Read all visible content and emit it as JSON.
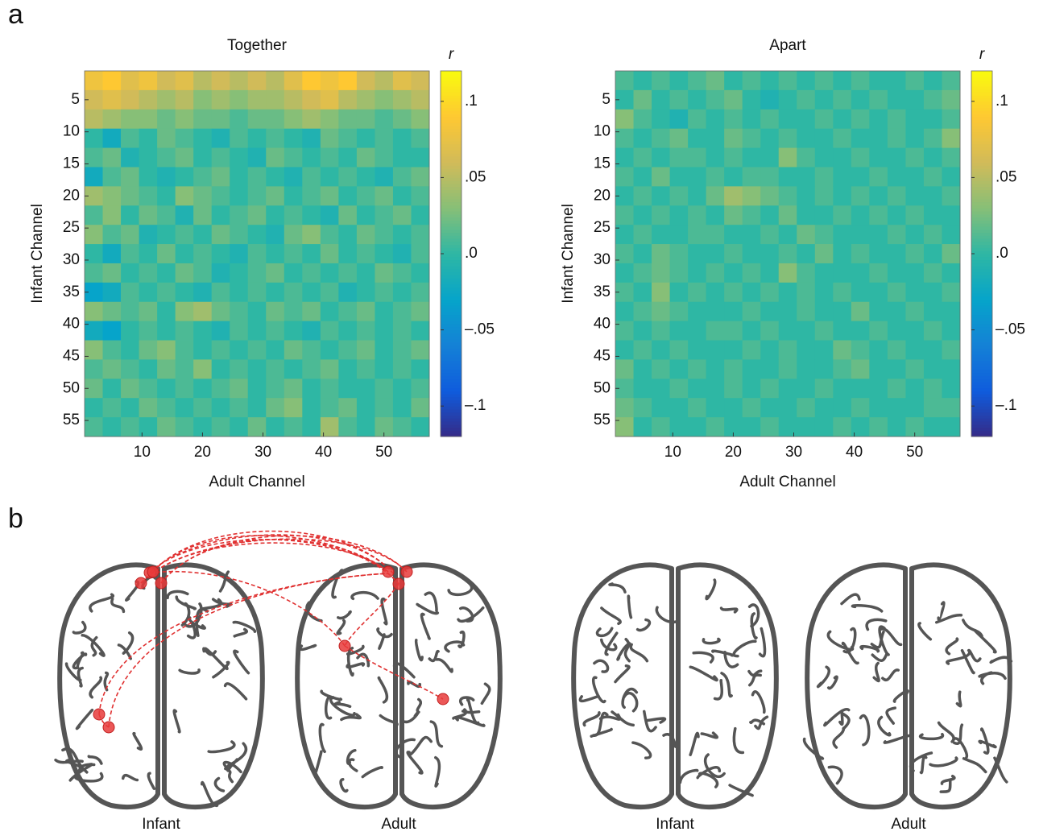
{
  "panel_labels": [
    "a",
    "b"
  ],
  "chart_data": [
    {
      "type": "heatmap",
      "title": "Together",
      "xlabel": "Adult Channel",
      "ylabel": "Infant Channel",
      "colorbar_label": "r",
      "colormap": "parula",
      "xlim": [
        0.5,
        57.5
      ],
      "ylim": [
        0.5,
        57.5
      ],
      "y_reversed": true,
      "xticks": [
        10,
        20,
        30,
        40,
        50
      ],
      "yticks": [
        5,
        10,
        15,
        20,
        25,
        30,
        35,
        40,
        45,
        50,
        55
      ],
      "clim": [
        -0.12,
        0.12
      ],
      "cticks": [
        {
          "value": 0.1,
          "label": ".1"
        },
        {
          "value": 0.05,
          "label": ".05"
        },
        {
          "value": 0,
          "label": ".0"
        },
        {
          "value": -0.05,
          "label": "–.05"
        },
        {
          "value": -0.1,
          "label": "–.1"
        }
      ],
      "xbins": [
        0.5,
        3.5,
        6.5,
        9.5,
        12.5,
        15.5,
        18.5,
        21.5,
        24.5,
        27.5,
        30.5,
        33.5,
        36.5,
        39.5,
        42.5,
        45.5,
        48.5,
        51.5,
        54.5,
        57.5
      ],
      "ybins": [
        0.5,
        3.5,
        6.5,
        9.5,
        12.5,
        15.5,
        18.5,
        21.5,
        24.5,
        27.5,
        30.5,
        33.5,
        36.5,
        39.5,
        42.5,
        45.5,
        48.5,
        51.5,
        54.5,
        57.5
      ],
      "z": [
        [
          0.08,
          0.09,
          0.07,
          0.08,
          0.06,
          0.07,
          0.05,
          0.06,
          0.05,
          0.06,
          0.05,
          0.07,
          0.09,
          0.08,
          0.09,
          0.06,
          0.05,
          0.07,
          0.06
        ],
        [
          0.06,
          0.07,
          0.06,
          0.05,
          0.04,
          0.05,
          0.03,
          0.04,
          0.03,
          0.04,
          0.04,
          0.05,
          0.06,
          0.07,
          0.05,
          0.04,
          0.03,
          0.04,
          0.05
        ],
        [
          0.05,
          0.04,
          0.03,
          0.03,
          0.02,
          0.03,
          0.02,
          0.02,
          0.01,
          0.02,
          0.02,
          0.03,
          0.04,
          0.03,
          0.02,
          0.02,
          0.01,
          0.02,
          0.03
        ],
        [
          0.0,
          -0.02,
          0.01,
          0.0,
          0.02,
          0.01,
          0.0,
          -0.01,
          0.01,
          0.0,
          0.01,
          0.0,
          -0.01,
          0.02,
          0.01,
          0.0,
          0.01,
          0.0,
          0.01
        ],
        [
          0.01,
          0.02,
          -0.01,
          0.0,
          0.01,
          0.02,
          0.0,
          0.01,
          0.0,
          -0.01,
          0.02,
          0.01,
          0.0,
          0.01,
          0.0,
          0.02,
          0.01,
          0.0,
          0.0
        ],
        [
          -0.02,
          0.01,
          0.02,
          0.0,
          -0.01,
          0.0,
          0.01,
          0.02,
          0.0,
          0.01,
          0.0,
          -0.01,
          0.01,
          0.0,
          0.01,
          0.0,
          -0.01,
          0.01,
          0.02
        ],
        [
          0.04,
          0.03,
          0.02,
          0.01,
          0.0,
          0.03,
          0.02,
          0.01,
          0.0,
          0.01,
          0.02,
          0.0,
          0.01,
          0.02,
          0.0,
          0.01,
          0.02,
          0.0,
          0.01
        ],
        [
          0.01,
          0.03,
          0.0,
          0.02,
          0.01,
          -0.01,
          0.02,
          0.0,
          0.01,
          0.02,
          0.0,
          0.01,
          0.0,
          -0.01,
          0.02,
          0.0,
          0.01,
          0.02,
          0.0
        ],
        [
          0.03,
          0.01,
          0.02,
          -0.01,
          0.0,
          0.01,
          0.0,
          0.02,
          0.01,
          0.0,
          -0.01,
          0.02,
          0.03,
          0.01,
          0.0,
          0.02,
          0.01,
          0.0,
          0.01
        ],
        [
          0.0,
          -0.02,
          0.01,
          0.0,
          0.02,
          0.0,
          0.01,
          0.0,
          -0.01,
          0.01,
          0.0,
          0.01,
          0.0,
          0.02,
          0.0,
          0.01,
          0.0,
          -0.01,
          0.01
        ],
        [
          0.01,
          0.02,
          0.0,
          0.01,
          0.0,
          0.02,
          0.01,
          -0.01,
          0.0,
          0.01,
          0.02,
          0.0,
          0.01,
          0.0,
          0.01,
          0.0,
          0.02,
          0.01,
          0.0
        ],
        [
          -0.03,
          -0.02,
          0.01,
          0.0,
          0.01,
          0.0,
          -0.01,
          0.01,
          0.0,
          0.01,
          0.0,
          0.01,
          0.0,
          0.01,
          -0.01,
          0.0,
          0.01,
          0.0,
          0.01
        ],
        [
          0.03,
          0.02,
          0.01,
          0.02,
          0.0,
          0.03,
          0.04,
          0.02,
          0.01,
          0.0,
          0.02,
          0.01,
          0.02,
          0.0,
          0.01,
          0.02,
          0.0,
          0.01,
          0.02
        ],
        [
          -0.02,
          -0.03,
          0.0,
          0.01,
          0.0,
          0.01,
          0.0,
          -0.01,
          0.01,
          0.0,
          0.01,
          0.0,
          -0.01,
          0.01,
          0.0,
          0.01,
          0.0,
          0.01,
          0.0
        ],
        [
          0.03,
          0.01,
          0.0,
          0.02,
          0.03,
          0.01,
          0.0,
          0.01,
          0.0,
          0.01,
          0.0,
          0.02,
          0.01,
          0.0,
          0.01,
          0.02,
          0.0,
          0.01,
          0.02
        ],
        [
          0.01,
          0.02,
          0.01,
          0.0,
          0.02,
          0.01,
          0.03,
          0.0,
          0.01,
          0.0,
          0.01,
          0.0,
          0.01,
          0.02,
          0.0,
          0.01,
          0.0,
          0.01,
          0.0
        ],
        [
          0.02,
          0.0,
          0.02,
          0.01,
          0.0,
          0.01,
          0.0,
          0.01,
          0.02,
          0.0,
          0.01,
          0.02,
          0.0,
          0.01,
          0.0,
          0.0,
          0.01,
          0.0,
          0.01
        ],
        [
          0.0,
          0.01,
          0.0,
          0.02,
          0.01,
          0.0,
          0.01,
          0.0,
          0.01,
          0.0,
          0.02,
          0.03,
          0.0,
          0.01,
          0.02,
          0.0,
          0.01,
          0.0,
          0.02
        ],
        [
          0.01,
          0.0,
          0.01,
          0.0,
          0.02,
          0.01,
          0.0,
          0.01,
          0.0,
          0.02,
          0.0,
          0.01,
          0.0,
          0.04,
          0.01,
          0.0,
          0.02,
          0.01,
          0.0
        ]
      ]
    },
    {
      "type": "heatmap",
      "title": "Apart",
      "xlabel": "Adult Channel",
      "ylabel": "Infant Channel",
      "colorbar_label": "r",
      "colormap": "parula",
      "xlim": [
        0.5,
        57.5
      ],
      "ylim": [
        0.5,
        57.5
      ],
      "y_reversed": true,
      "xticks": [
        10,
        20,
        30,
        40,
        50
      ],
      "yticks": [
        5,
        10,
        15,
        20,
        25,
        30,
        35,
        40,
        45,
        50,
        55
      ],
      "clim": [
        -0.12,
        0.12
      ],
      "cticks": [
        {
          "value": 0.1,
          "label": ".1"
        },
        {
          "value": 0.05,
          "label": ".05"
        },
        {
          "value": 0,
          "label": ".0"
        },
        {
          "value": -0.05,
          "label": "–.05"
        },
        {
          "value": -0.1,
          "label": "–.1"
        }
      ],
      "xbins": [
        0.5,
        3.5,
        6.5,
        9.5,
        12.5,
        15.5,
        18.5,
        21.5,
        24.5,
        27.5,
        30.5,
        33.5,
        36.5,
        39.5,
        42.5,
        45.5,
        48.5,
        51.5,
        54.5,
        57.5
      ],
      "ybins": [
        0.5,
        3.5,
        6.5,
        9.5,
        12.5,
        15.5,
        18.5,
        21.5,
        24.5,
        27.5,
        30.5,
        33.5,
        36.5,
        39.5,
        42.5,
        45.5,
        48.5,
        51.5,
        54.5,
        57.5
      ],
      "z": [
        [
          0.01,
          0.0,
          0.01,
          0.0,
          0.01,
          0.02,
          0.0,
          0.01,
          0.0,
          0.01,
          0.0,
          0.01,
          0.0,
          0.01,
          0.0,
          0.0,
          0.01,
          0.0,
          0.01
        ],
        [
          0.0,
          0.02,
          0.0,
          0.01,
          0.0,
          0.01,
          0.02,
          0.0,
          -0.01,
          0.0,
          0.01,
          0.0,
          0.01,
          0.0,
          0.01,
          0.0,
          0.0,
          0.01,
          0.02
        ],
        [
          0.03,
          0.01,
          0.0,
          -0.01,
          0.01,
          0.0,
          0.01,
          0.0,
          0.01,
          0.0,
          0.0,
          0.01,
          0.0,
          0.01,
          0.0,
          0.01,
          0.0,
          0.0,
          0.01
        ],
        [
          0.01,
          0.0,
          0.01,
          0.02,
          0.0,
          0.0,
          0.02,
          0.01,
          0.0,
          0.01,
          0.0,
          0.0,
          0.01,
          0.0,
          0.0,
          0.01,
          0.0,
          0.01,
          0.03
        ],
        [
          0.0,
          0.01,
          0.0,
          0.01,
          0.01,
          0.0,
          0.01,
          0.0,
          0.0,
          0.03,
          0.01,
          0.0,
          0.0,
          0.01,
          0.0,
          0.0,
          0.01,
          0.0,
          0.01
        ],
        [
          0.01,
          0.0,
          0.02,
          0.0,
          0.0,
          0.01,
          0.0,
          0.01,
          0.01,
          0.0,
          0.0,
          0.01,
          0.0,
          0.0,
          0.01,
          0.0,
          0.0,
          0.01,
          0.0
        ],
        [
          0.0,
          0.01,
          0.0,
          0.01,
          0.0,
          0.02,
          0.04,
          0.03,
          0.02,
          0.01,
          0.0,
          0.01,
          0.0,
          0.01,
          0.0,
          0.01,
          0.0,
          0.0,
          0.01
        ],
        [
          0.01,
          0.0,
          0.01,
          0.0,
          0.01,
          0.0,
          0.02,
          0.01,
          0.0,
          0.02,
          0.0,
          0.0,
          0.01,
          0.0,
          0.01,
          0.0,
          0.01,
          0.0,
          0.0
        ],
        [
          0.0,
          0.01,
          0.0,
          0.0,
          0.01,
          0.01,
          0.0,
          0.0,
          0.01,
          0.0,
          0.02,
          0.01,
          0.0,
          0.0,
          0.0,
          0.01,
          0.0,
          0.01,
          0.0
        ],
        [
          0.01,
          0.0,
          0.02,
          0.01,
          0.0,
          0.0,
          0.01,
          0.0,
          0.0,
          0.01,
          0.0,
          0.02,
          0.0,
          0.01,
          0.0,
          0.0,
          0.01,
          0.0,
          0.02
        ],
        [
          0.0,
          0.01,
          0.02,
          0.01,
          0.0,
          0.01,
          0.0,
          0.01,
          0.0,
          0.03,
          0.01,
          0.0,
          0.0,
          0.0,
          0.01,
          0.0,
          0.0,
          0.01,
          0.0
        ],
        [
          0.01,
          0.0,
          0.03,
          0.0,
          0.01,
          0.0,
          0.01,
          0.0,
          0.01,
          0.0,
          0.01,
          0.0,
          0.01,
          0.0,
          0.0,
          0.01,
          0.0,
          0.0,
          0.01
        ],
        [
          0.0,
          0.01,
          0.02,
          0.01,
          0.0,
          0.0,
          0.0,
          0.01,
          0.0,
          0.0,
          0.01,
          0.0,
          0.0,
          0.02,
          0.0,
          0.0,
          0.01,
          0.0,
          0.0
        ],
        [
          0.01,
          0.0,
          0.01,
          0.0,
          0.0,
          0.01,
          0.01,
          0.0,
          0.01,
          0.0,
          0.0,
          0.01,
          0.0,
          0.0,
          0.01,
          0.0,
          0.0,
          0.01,
          0.0
        ],
        [
          0.0,
          0.01,
          0.0,
          0.01,
          0.0,
          0.0,
          0.0,
          0.01,
          0.0,
          0.01,
          0.0,
          0.0,
          0.02,
          0.01,
          0.0,
          0.01,
          0.0,
          0.0,
          0.01
        ],
        [
          0.02,
          0.0,
          0.01,
          0.0,
          0.01,
          0.0,
          0.01,
          0.0,
          0.0,
          0.01,
          0.0,
          0.0,
          0.01,
          0.02,
          0.0,
          0.0,
          0.01,
          0.0,
          0.0
        ],
        [
          0.01,
          0.0,
          0.0,
          0.01,
          0.0,
          0.0,
          0.01,
          0.0,
          0.01,
          0.0,
          0.0,
          0.01,
          0.0,
          0.0,
          0.0,
          0.01,
          0.0,
          0.01,
          0.0
        ],
        [
          0.02,
          0.01,
          0.0,
          0.0,
          0.01,
          0.0,
          0.0,
          0.01,
          0.0,
          0.0,
          0.01,
          0.0,
          0.0,
          0.01,
          0.0,
          0.0,
          0.0,
          0.01,
          0.01
        ],
        [
          0.03,
          0.0,
          0.01,
          0.0,
          0.0,
          0.01,
          0.0,
          0.0,
          0.01,
          0.0,
          0.0,
          0.0,
          0.01,
          0.0,
          0.01,
          0.0,
          0.01,
          0.0,
          0.0
        ]
      ]
    }
  ],
  "panel_b": {
    "brain_labels": [
      "Infant",
      "Adult",
      "Infant",
      "Adult"
    ]
  }
}
